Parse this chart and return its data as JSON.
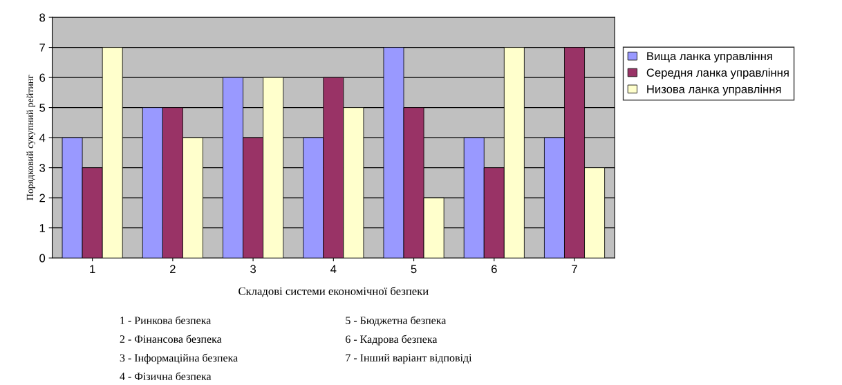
{
  "chart_data": {
    "type": "bar",
    "xlabel": "Складові системи економічної безпеки",
    "ylabel": "Порядковий сукупний рейтинг",
    "categories": [
      "1",
      "2",
      "3",
      "4",
      "5",
      "6",
      "7"
    ],
    "series": [
      {
        "name": "Вища ланка управління",
        "color": "#9999ff",
        "values": [
          4,
          5,
          6,
          4,
          7,
          4,
          4
        ]
      },
      {
        "name": "Середня ланка управління",
        "color": "#993366",
        "values": [
          3,
          5,
          4,
          6,
          5,
          3,
          7
        ]
      },
      {
        "name": "Низова ланка управління",
        "color": "#ffffcc",
        "values": [
          7,
          4,
          6,
          5,
          2,
          7,
          3
        ]
      }
    ],
    "ylim": [
      0,
      8
    ],
    "yticks": [
      0,
      1,
      2,
      3,
      4,
      5,
      6,
      7,
      8
    ],
    "grid": "y",
    "legend": "right",
    "annotations": [
      "1 - Ринкова безпека",
      "2 - Фінансова безпека",
      "3 - Інформаційна безпека",
      "4 - Фізична безпека",
      "5 - Бюджетна безпека",
      "6 - Кадрова безпека",
      "7 - Інший варіант відповіді"
    ]
  }
}
